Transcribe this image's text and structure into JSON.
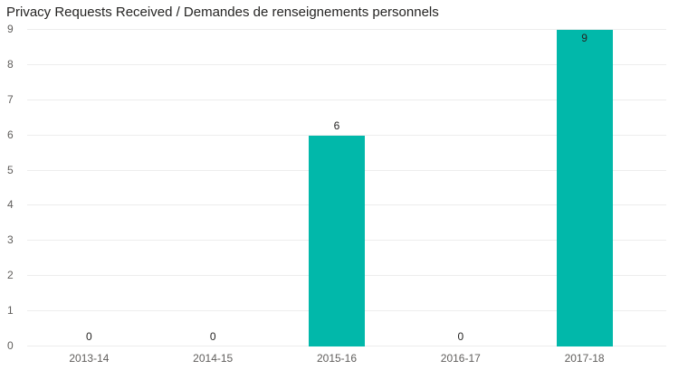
{
  "title": "Privacy Requests Received / Demandes de renseignements personnels",
  "colors": {
    "bar": "#01B8AA",
    "gridline": "#EDEDED",
    "axis_label": "#605E5C",
    "data_label": "#252423",
    "title": "#252423",
    "background": "#FFFFFF"
  },
  "chart_data": {
    "type": "bar",
    "title": "Privacy Requests Received / Demandes de renseignements personnels",
    "categories": [
      "2013-14",
      "2014-15",
      "2015-16",
      "2016-17",
      "2017-18"
    ],
    "values": [
      0,
      0,
      6,
      0,
      9
    ],
    "data_labels": [
      "0",
      "0",
      "6",
      "0",
      "9"
    ],
    "xlabel": "",
    "ylabel": "",
    "ylim": [
      0,
      9
    ],
    "yticks": [
      0,
      1,
      2,
      3,
      4,
      5,
      6,
      7,
      8,
      9
    ],
    "grid": true,
    "legend": false
  }
}
